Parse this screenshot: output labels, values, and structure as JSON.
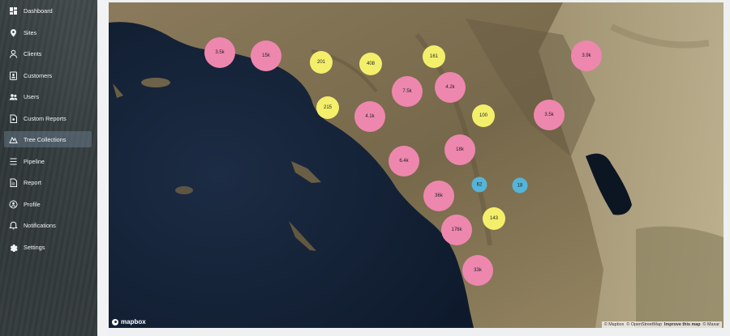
{
  "sidebar": {
    "items": [
      {
        "label": "Dashboard",
        "icon": "dashboard-icon",
        "active": false
      },
      {
        "label": "Sites",
        "icon": "location-pin-icon",
        "active": false
      },
      {
        "label": "Clients",
        "icon": "person-icon",
        "active": false
      },
      {
        "label": "Customers",
        "icon": "contact-card-icon",
        "active": false
      },
      {
        "label": "Users",
        "icon": "users-icon",
        "active": false
      },
      {
        "label": "Custom Reports",
        "icon": "report-file-icon",
        "active": false
      },
      {
        "label": "Tree Collections",
        "icon": "tree-collections-icon",
        "active": true
      },
      {
        "label": "Pipeline",
        "icon": "pipeline-icon",
        "active": false
      },
      {
        "label": "Report",
        "icon": "document-icon",
        "active": false
      },
      {
        "label": "Profile",
        "icon": "profile-icon",
        "active": false
      },
      {
        "label": "Notifications",
        "icon": "bell-icon",
        "active": false
      },
      {
        "label": "Settings",
        "icon": "gear-icon",
        "active": false
      }
    ]
  },
  "map": {
    "clusters": [
      {
        "label": "3.5k",
        "kind": "large"
      },
      {
        "label": "15k",
        "kind": "large"
      },
      {
        "label": "201",
        "kind": "medium"
      },
      {
        "label": "408",
        "kind": "medium"
      },
      {
        "label": "161",
        "kind": "medium"
      },
      {
        "label": "3.9k",
        "kind": "large"
      },
      {
        "label": "7.5k",
        "kind": "large"
      },
      {
        "label": "4.2k",
        "kind": "large"
      },
      {
        "label": "215",
        "kind": "medium"
      },
      {
        "label": "4.1k",
        "kind": "large"
      },
      {
        "label": "100",
        "kind": "medium"
      },
      {
        "label": "3.5k",
        "kind": "large"
      },
      {
        "label": "18k",
        "kind": "large"
      },
      {
        "label": "6.4k",
        "kind": "large"
      },
      {
        "label": "62",
        "kind": "small"
      },
      {
        "label": "18",
        "kind": "small"
      },
      {
        "label": "36k",
        "kind": "large"
      },
      {
        "label": "143",
        "kind": "medium"
      },
      {
        "label": "176k",
        "kind": "large"
      },
      {
        "label": "33k",
        "kind": "large"
      }
    ],
    "colors": {
      "large": "#ee87ae",
      "medium": "#f4ef6b",
      "small": "#55b4d8"
    },
    "logo_text": "mapbox",
    "attribution": {
      "mapbox": "© Mapbox",
      "osm": "© OpenStreetMap",
      "improve": "Improve this map",
      "maxar": "© Maxar"
    }
  }
}
